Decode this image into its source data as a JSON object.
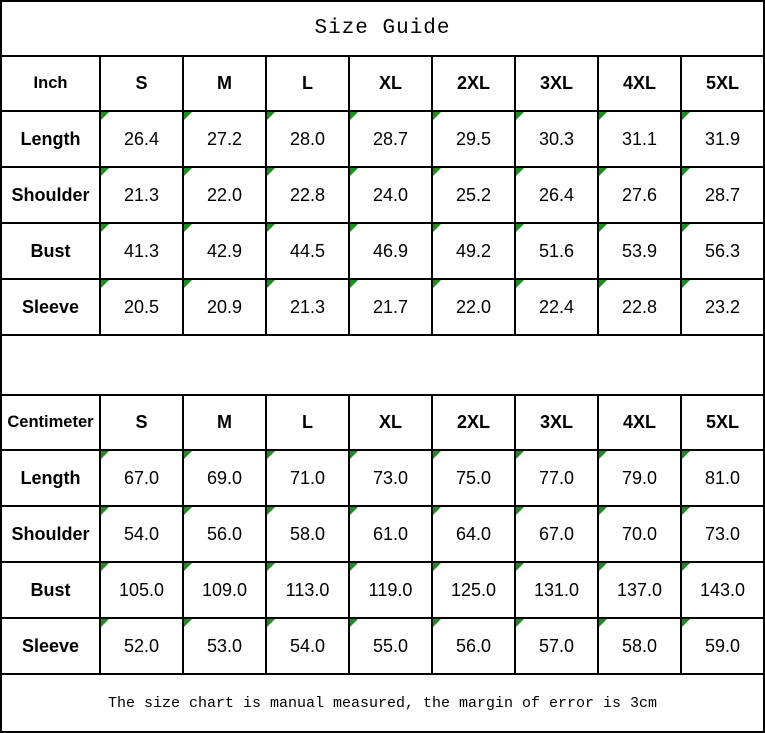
{
  "page": {
    "title": "Size Guide",
    "footer_note": "The size chart is manual measured, the margin of error is 3cm"
  },
  "colors": {
    "border": "#000000",
    "background": "#ffffff",
    "text": "#000000",
    "flag_triangle_green": "#1e8c1e"
  },
  "chart_data": [
    {
      "type": "table",
      "title": "Size Guide",
      "unit_label": "Inch",
      "size_headers": [
        "S",
        "M",
        "L",
        "XL",
        "2XL",
        "3XL",
        "4XL",
        "5XL"
      ],
      "rows": [
        {
          "label": "Length",
          "values": [
            "26.4",
            "27.2",
            "28.0",
            "28.7",
            "29.5",
            "30.3",
            "31.1",
            "31.9"
          ]
        },
        {
          "label": "Shoulder",
          "values": [
            "21.3",
            "22.0",
            "22.8",
            "24.0",
            "25.2",
            "26.4",
            "27.6",
            "28.7"
          ]
        },
        {
          "label": "Bust",
          "values": [
            "41.3",
            "42.9",
            "44.5",
            "46.9",
            "49.2",
            "51.6",
            "53.9",
            "56.3"
          ]
        },
        {
          "label": "Sleeve",
          "values": [
            "20.5",
            "20.9",
            "21.3",
            "21.7",
            "22.0",
            "22.4",
            "22.8",
            "23.2"
          ]
        }
      ]
    },
    {
      "type": "table",
      "title": "Size Guide",
      "unit_label": "Centimeter",
      "size_headers": [
        "S",
        "M",
        "L",
        "XL",
        "2XL",
        "3XL",
        "4XL",
        "5XL"
      ],
      "rows": [
        {
          "label": "Length",
          "values": [
            "67.0",
            "69.0",
            "71.0",
            "73.0",
            "75.0",
            "77.0",
            "79.0",
            "81.0"
          ]
        },
        {
          "label": "Shoulder",
          "values": [
            "54.0",
            "56.0",
            "58.0",
            "61.0",
            "64.0",
            "67.0",
            "70.0",
            "73.0"
          ]
        },
        {
          "label": "Bust",
          "values": [
            "105.0",
            "109.0",
            "113.0",
            "119.0",
            "125.0",
            "131.0",
            "137.0",
            "143.0"
          ]
        },
        {
          "label": "Sleeve",
          "values": [
            "52.0",
            "53.0",
            "54.0",
            "55.0",
            "56.0",
            "57.0",
            "58.0",
            "59.0"
          ]
        }
      ]
    }
  ]
}
